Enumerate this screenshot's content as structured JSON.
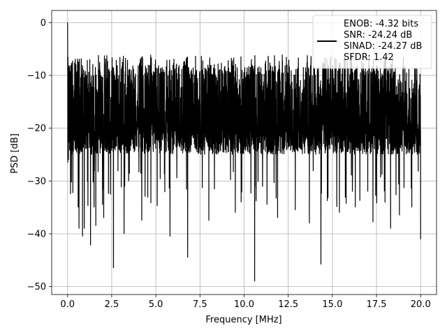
{
  "chart_data": {
    "type": "line",
    "title": "",
    "xlabel": "Frequency [MHz]",
    "ylabel": "PSD [dB]",
    "xlim": [
      -0.9,
      20.9
    ],
    "ylim": [
      -51.5,
      2.3
    ],
    "xticks": [
      0.0,
      2.5,
      5.0,
      7.5,
      10.0,
      12.5,
      15.0,
      17.5,
      20.0
    ],
    "xtick_labels": [
      "0.0",
      "2.5",
      "5.0",
      "7.5",
      "10.0",
      "12.5",
      "15.0",
      "17.5",
      "20.0"
    ],
    "yticks": [
      0,
      -10,
      -20,
      -30,
      -40,
      -50
    ],
    "ytick_labels": [
      "0",
      "−10",
      "−20",
      "−30",
      "−40",
      "−50"
    ],
    "grid": true,
    "legend_position": "top-right",
    "line_color": "#000000",
    "series": [
      {
        "name": "ENOB: -4.32 bits\nSNR: -24.24 dB\nSINAD: -24.27 dB\nSFDR: 1.42",
        "noise_band_db": [
          -25,
          -8
        ],
        "x_range": [
          0.0,
          20.0
        ],
        "peaks": [
          {
            "x": 0.0,
            "y": 0.0
          },
          {
            "x": 0.05,
            "y": -4.5
          },
          {
            "x": 0.1,
            "y": -26.5
          }
        ],
        "notable_dips": [
          {
            "x": 0.6,
            "y": -35.0
          },
          {
            "x": 0.65,
            "y": -39.0
          },
          {
            "x": 0.85,
            "y": -40.5
          },
          {
            "x": 0.95,
            "y": -39.0
          },
          {
            "x": 1.3,
            "y": -42.2
          },
          {
            "x": 1.5,
            "y": -35.0
          },
          {
            "x": 1.6,
            "y": -38.5
          },
          {
            "x": 2.05,
            "y": -37.0
          },
          {
            "x": 2.6,
            "y": -46.5
          },
          {
            "x": 3.2,
            "y": -40.0
          },
          {
            "x": 4.2,
            "y": -37.5
          },
          {
            "x": 5.8,
            "y": -40.5
          },
          {
            "x": 6.8,
            "y": -44.5
          },
          {
            "x": 8.0,
            "y": -37.5
          },
          {
            "x": 9.5,
            "y": -36.0
          },
          {
            "x": 10.6,
            "y": -49.0
          },
          {
            "x": 11.3,
            "y": -34.5
          },
          {
            "x": 11.9,
            "y": -37.0
          },
          {
            "x": 12.9,
            "y": -35.5
          },
          {
            "x": 13.7,
            "y": -38.0
          },
          {
            "x": 14.35,
            "y": -45.8
          },
          {
            "x": 15.4,
            "y": -36.0
          },
          {
            "x": 16.3,
            "y": -35.0
          },
          {
            "x": 17.3,
            "y": -37.8
          },
          {
            "x": 18.3,
            "y": -39.0
          },
          {
            "x": 18.8,
            "y": -36.5
          },
          {
            "x": 19.5,
            "y": -35.0
          },
          {
            "x": 20.0,
            "y": -41.0
          }
        ]
      }
    ]
  }
}
